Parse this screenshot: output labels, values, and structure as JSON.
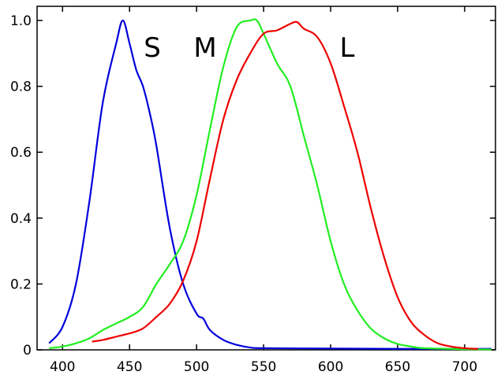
{
  "chart_data": {
    "type": "line",
    "xlim": [
      381,
      723
    ],
    "ylim": [
      0,
      1.043
    ],
    "xticks": [
      400,
      450,
      500,
      550,
      600,
      650,
      700
    ],
    "yticks": [
      0,
      0.2,
      0.4,
      0.6,
      0.8,
      {
        "value": 1,
        "label": "1.0"
      }
    ],
    "annotations": [
      "S",
      "M",
      "L"
    ],
    "series": [
      {
        "color": "#0000dd",
        "x": [
          390,
          400,
          410,
          420,
          430,
          440,
          445,
          450,
          455,
          460,
          465,
          470,
          480,
          490,
          500,
          505,
          510,
          520,
          530,
          540,
          550,
          600,
          650,
          700,
          720
        ],
        "values": [
          0.02,
          0.07,
          0.2,
          0.45,
          0.75,
          0.93,
          1.0,
          0.93,
          0.85,
          0.8,
          0.72,
          0.62,
          0.37,
          0.2,
          0.11,
          0.095,
          0.06,
          0.03,
          0.015,
          0.007,
          0.005,
          0.004,
          0.003,
          0.003,
          0.003
        ]
      },
      {
        "color": "#22ee22",
        "x": [
          390,
          400,
          410,
          420,
          430,
          440,
          450,
          460,
          470,
          480,
          490,
          500,
          510,
          520,
          530,
          540,
          545,
          550,
          560,
          570,
          580,
          590,
          600,
          610,
          620,
          630,
          640,
          650,
          660,
          670,
          700,
          720
        ],
        "values": [
          0.005,
          0.01,
          0.02,
          0.035,
          0.06,
          0.08,
          0.1,
          0.13,
          0.2,
          0.26,
          0.33,
          0.47,
          0.67,
          0.86,
          0.98,
          1.0,
          1.0,
          0.96,
          0.87,
          0.8,
          0.65,
          0.5,
          0.33,
          0.2,
          0.12,
          0.065,
          0.035,
          0.018,
          0.01,
          0.005,
          0.002,
          0.001
        ]
      },
      {
        "color": "#ee0000",
        "x": [
          422,
          430,
          440,
          450,
          460,
          470,
          480,
          490,
          500,
          510,
          520,
          530,
          540,
          550,
          560,
          570,
          575,
          580,
          590,
          600,
          610,
          620,
          630,
          640,
          650,
          660,
          670,
          680,
          690,
          700,
          710
        ],
        "values": [
          0.025,
          0.03,
          0.04,
          0.05,
          0.065,
          0.1,
          0.14,
          0.21,
          0.33,
          0.52,
          0.7,
          0.82,
          0.9,
          0.96,
          0.97,
          0.99,
          0.995,
          0.975,
          0.95,
          0.87,
          0.74,
          0.6,
          0.43,
          0.28,
          0.16,
          0.085,
          0.045,
          0.02,
          0.01,
          0.005,
          0.003
        ]
      }
    ]
  }
}
